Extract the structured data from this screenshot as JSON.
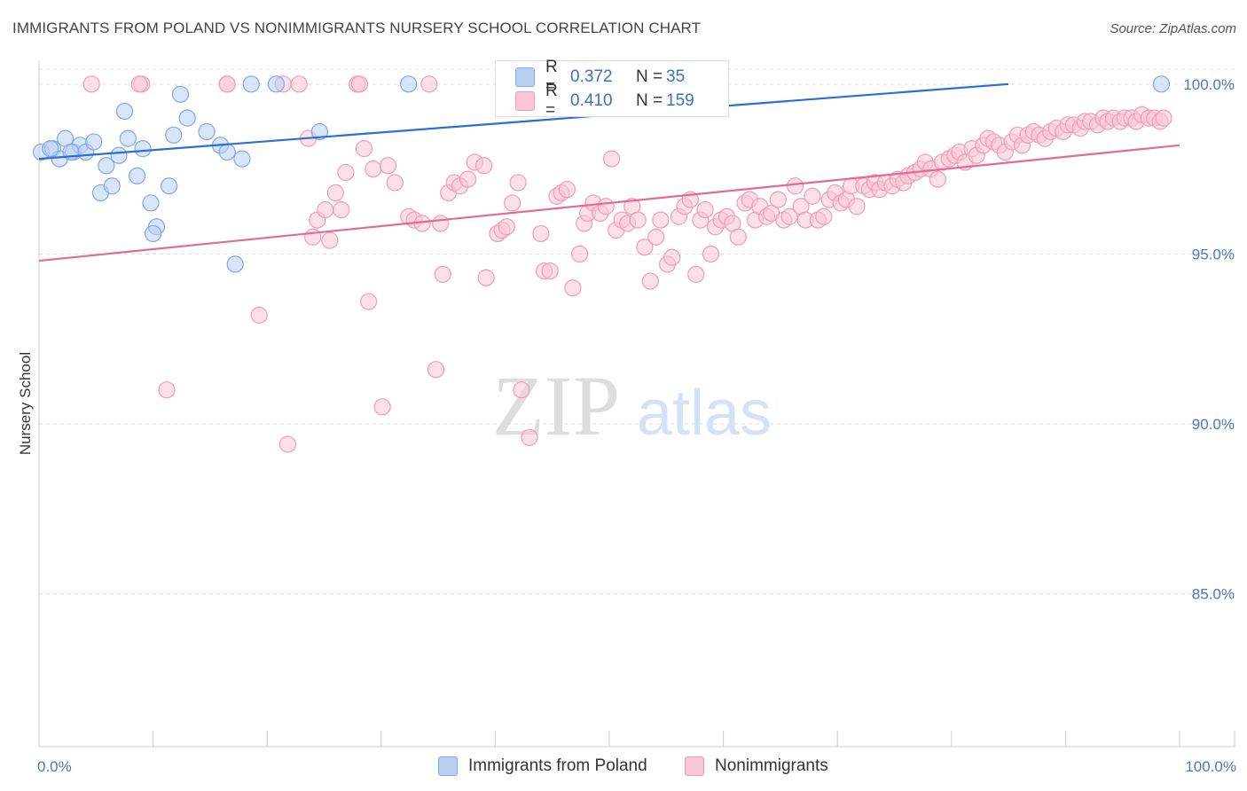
{
  "header": {
    "title": "IMMIGRANTS FROM POLAND VS NONIMMIGRANTS NURSERY SCHOOL CORRELATION CHART",
    "source": "Source: ZipAtlas.com"
  },
  "watermark": {
    "zip": "ZIP",
    "atlas": "atlas"
  },
  "legend": {
    "r_label": "R =",
    "n_label": "N =",
    "rows": [
      {
        "r": "0.372",
        "n": "35"
      },
      {
        "r": "0.410",
        "n": "159"
      }
    ]
  },
  "chart_data": {
    "type": "scatter",
    "title": "IMMIGRANTS FROM POLAND VS NONIMMIGRANTS NURSERY SCHOOL CORRELATION CHART",
    "xlabel": "",
    "ylabel": "Nursery School",
    "xlim": [
      0,
      100
    ],
    "ylim": [
      80.5,
      100.7
    ],
    "x_tick_labels": [
      "0.0%",
      "100.0%"
    ],
    "y_ticks": [
      85,
      90,
      95,
      100
    ],
    "y_tick_labels": [
      "85.0%",
      "90.0%",
      "95.0%",
      "100.0%"
    ],
    "grid": true,
    "legend_position": "bottom",
    "series": [
      {
        "name": "Immigrants from Poland",
        "color": "#7fa8e8",
        "fill": "#b9cff3",
        "line_color": "#2a6fd4",
        "trend": {
          "x": [
            0,
            85
          ],
          "y": [
            97.8,
            100.0
          ]
        },
        "points": [
          [
            0.2,
            98.0
          ],
          [
            1.2,
            98.1
          ],
          [
            1.8,
            97.8
          ],
          [
            2.3,
            98.4
          ],
          [
            3.0,
            98.0
          ],
          [
            3.6,
            98.2
          ],
          [
            4.1,
            98.0
          ],
          [
            4.8,
            98.3
          ],
          [
            5.4,
            96.8
          ],
          [
            5.9,
            97.6
          ],
          [
            6.4,
            97.0
          ],
          [
            7.0,
            97.9
          ],
          [
            7.5,
            99.2
          ],
          [
            7.8,
            98.4
          ],
          [
            8.6,
            97.3
          ],
          [
            9.1,
            98.1
          ],
          [
            9.8,
            96.5
          ],
          [
            10.3,
            95.8
          ],
          [
            10.0,
            95.6
          ],
          [
            11.4,
            97.0
          ],
          [
            11.8,
            98.5
          ],
          [
            12.4,
            99.7
          ],
          [
            13.0,
            99.0
          ],
          [
            14.7,
            98.6
          ],
          [
            15.9,
            98.2
          ],
          [
            16.5,
            98.0
          ],
          [
            17.2,
            94.7
          ],
          [
            17.8,
            97.8
          ],
          [
            18.6,
            100.0
          ],
          [
            20.8,
            100.0
          ],
          [
            24.6,
            98.6
          ],
          [
            32.4,
            100.0
          ],
          [
            98.4,
            100.0
          ],
          [
            1.0,
            98.1
          ],
          [
            2.8,
            98.0
          ]
        ]
      },
      {
        "name": "Nonimmigrants",
        "color": "#f29bb8",
        "fill": "#f8c6d6",
        "line_color": "#e26a96",
        "trend": {
          "x": [
            0,
            100
          ],
          "y": [
            94.8,
            98.2
          ]
        },
        "points": [
          [
            4.6,
            100.0
          ],
          [
            9.0,
            100.0
          ],
          [
            16.5,
            100.0
          ],
          [
            21.4,
            100.0
          ],
          [
            22.8,
            100.0
          ],
          [
            27.9,
            100.0
          ],
          [
            28.1,
            100.0
          ],
          [
            34.2,
            100.0
          ],
          [
            16.5,
            100.0
          ],
          [
            8.8,
            100.0
          ],
          [
            11.2,
            91.0
          ],
          [
            19.3,
            93.2
          ],
          [
            21.8,
            89.4
          ],
          [
            23.6,
            98.4
          ],
          [
            24.0,
            95.5
          ],
          [
            24.4,
            96.0
          ],
          [
            25.1,
            96.3
          ],
          [
            25.5,
            95.4
          ],
          [
            26.0,
            96.8
          ],
          [
            26.5,
            96.3
          ],
          [
            26.9,
            97.4
          ],
          [
            28.5,
            98.1
          ],
          [
            28.9,
            93.6
          ],
          [
            29.3,
            97.5
          ],
          [
            30.1,
            90.5
          ],
          [
            30.6,
            97.6
          ],
          [
            31.2,
            97.1
          ],
          [
            32.4,
            96.1
          ],
          [
            32.9,
            96.0
          ],
          [
            33.6,
            95.9
          ],
          [
            34.8,
            91.6
          ],
          [
            35.2,
            95.9
          ],
          [
            35.4,
            94.4
          ],
          [
            35.9,
            96.8
          ],
          [
            36.4,
            97.1
          ],
          [
            36.9,
            97.0
          ],
          [
            37.6,
            97.2
          ],
          [
            38.2,
            97.7
          ],
          [
            39.0,
            97.6
          ],
          [
            39.2,
            94.3
          ],
          [
            40.2,
            95.6
          ],
          [
            40.6,
            95.7
          ],
          [
            41.0,
            95.8
          ],
          [
            41.5,
            96.5
          ],
          [
            42.0,
            97.1
          ],
          [
            42.3,
            91.0
          ],
          [
            43.0,
            89.6
          ],
          [
            44.0,
            95.6
          ],
          [
            44.3,
            94.5
          ],
          [
            44.8,
            94.5
          ],
          [
            45.4,
            96.7
          ],
          [
            45.8,
            96.8
          ],
          [
            46.3,
            96.9
          ],
          [
            46.8,
            94.0
          ],
          [
            47.4,
            95.0
          ],
          [
            47.8,
            95.9
          ],
          [
            48.1,
            96.2
          ],
          [
            48.6,
            96.5
          ],
          [
            49.2,
            96.2
          ],
          [
            49.7,
            96.4
          ],
          [
            50.2,
            97.8
          ],
          [
            50.6,
            95.7
          ],
          [
            51.1,
            96.0
          ],
          [
            51.6,
            95.9
          ],
          [
            52.0,
            96.4
          ],
          [
            52.5,
            96.0
          ],
          [
            53.1,
            95.2
          ],
          [
            53.6,
            94.2
          ],
          [
            54.1,
            95.5
          ],
          [
            54.5,
            96.0
          ],
          [
            55.1,
            94.7
          ],
          [
            55.5,
            94.9
          ],
          [
            56.1,
            96.1
          ],
          [
            56.6,
            96.4
          ],
          [
            57.1,
            96.6
          ],
          [
            57.6,
            94.4
          ],
          [
            58.0,
            96.0
          ],
          [
            58.4,
            96.3
          ],
          [
            58.9,
            95.0
          ],
          [
            59.3,
            95.8
          ],
          [
            59.8,
            96.0
          ],
          [
            60.3,
            96.1
          ],
          [
            60.8,
            95.9
          ],
          [
            61.3,
            95.5
          ],
          [
            61.9,
            96.5
          ],
          [
            62.3,
            96.6
          ],
          [
            62.8,
            96.0
          ],
          [
            63.2,
            96.4
          ],
          [
            63.8,
            96.1
          ],
          [
            64.2,
            96.2
          ],
          [
            64.8,
            96.6
          ],
          [
            65.3,
            96.0
          ],
          [
            65.8,
            96.1
          ],
          [
            66.3,
            97.0
          ],
          [
            66.8,
            96.4
          ],
          [
            67.2,
            96.0
          ],
          [
            67.8,
            96.7
          ],
          [
            68.3,
            96.0
          ],
          [
            68.8,
            96.1
          ],
          [
            69.3,
            96.6
          ],
          [
            69.8,
            96.8
          ],
          [
            70.3,
            96.5
          ],
          [
            70.8,
            96.6
          ],
          [
            71.2,
            97.0
          ],
          [
            71.7,
            96.4
          ],
          [
            72.3,
            97.0
          ],
          [
            72.8,
            96.9
          ],
          [
            73.3,
            97.1
          ],
          [
            73.7,
            96.9
          ],
          [
            74.2,
            97.1
          ],
          [
            74.8,
            97.0
          ],
          [
            75.3,
            97.2
          ],
          [
            75.8,
            97.1
          ],
          [
            76.2,
            97.3
          ],
          [
            76.8,
            97.4
          ],
          [
            77.3,
            97.5
          ],
          [
            77.7,
            97.7
          ],
          [
            78.2,
            97.5
          ],
          [
            78.8,
            97.2
          ],
          [
            79.2,
            97.7
          ],
          [
            79.8,
            97.8
          ],
          [
            80.3,
            97.9
          ],
          [
            80.7,
            98.0
          ],
          [
            81.2,
            97.7
          ],
          [
            81.8,
            98.1
          ],
          [
            82.2,
            97.9
          ],
          [
            82.8,
            98.2
          ],
          [
            83.2,
            98.4
          ],
          [
            83.7,
            98.3
          ],
          [
            84.2,
            98.2
          ],
          [
            84.7,
            98.0
          ],
          [
            85.3,
            98.3
          ],
          [
            85.8,
            98.5
          ],
          [
            86.2,
            98.2
          ],
          [
            86.7,
            98.5
          ],
          [
            87.2,
            98.6
          ],
          [
            87.7,
            98.5
          ],
          [
            88.2,
            98.4
          ],
          [
            88.7,
            98.6
          ],
          [
            89.2,
            98.7
          ],
          [
            89.8,
            98.6
          ],
          [
            90.2,
            98.8
          ],
          [
            90.7,
            98.8
          ],
          [
            91.3,
            98.7
          ],
          [
            91.7,
            98.9
          ],
          [
            92.2,
            98.9
          ],
          [
            92.8,
            98.8
          ],
          [
            93.3,
            99.0
          ],
          [
            93.7,
            98.9
          ],
          [
            94.2,
            99.0
          ],
          [
            94.8,
            98.9
          ],
          [
            95.2,
            99.0
          ],
          [
            95.8,
            99.0
          ],
          [
            96.2,
            98.9
          ],
          [
            96.7,
            99.1
          ],
          [
            97.3,
            99.0
          ],
          [
            97.8,
            99.0
          ],
          [
            98.3,
            98.9
          ],
          [
            98.6,
            99.0
          ]
        ]
      }
    ]
  }
}
